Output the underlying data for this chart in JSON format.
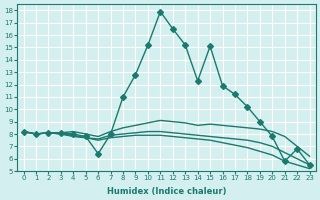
{
  "xlabel": "Humidex (Indice chaleur)",
  "ylabel": "",
  "xlim": [
    -0.5,
    23.5
  ],
  "ylim": [
    5,
    18.5
  ],
  "yticks": [
    5,
    6,
    7,
    8,
    9,
    10,
    11,
    12,
    13,
    14,
    15,
    16,
    17,
    18
  ],
  "xticks": [
    0,
    1,
    2,
    3,
    4,
    5,
    6,
    7,
    8,
    9,
    10,
    11,
    12,
    13,
    14,
    15,
    16,
    17,
    18,
    19,
    20,
    21,
    22,
    23
  ],
  "bg_color": "#d4efef",
  "grid_color": "#ffffff",
  "line_color": "#1a7a6e",
  "lines": [
    {
      "x": [
        0,
        1,
        2,
        3,
        4,
        5,
        6,
        7,
        8,
        9,
        10,
        11,
        12,
        13,
        14,
        15,
        16,
        17,
        18,
        19,
        20,
        21,
        22,
        23
      ],
      "y": [
        8.2,
        8.0,
        8.1,
        8.1,
        8.0,
        7.8,
        6.4,
        8.0,
        11.0,
        12.8,
        15.2,
        17.9,
        16.5,
        15.2,
        12.3,
        15.1,
        11.9,
        11.2,
        10.2,
        9.0,
        7.8,
        5.8,
        6.8,
        5.5
      ],
      "marker": "D",
      "markersize": 3,
      "has_marker": true
    },
    {
      "x": [
        0,
        1,
        2,
        3,
        4,
        5,
        6,
        7,
        8,
        9,
        10,
        11,
        12,
        13,
        14,
        15,
        16,
        17,
        18,
        19,
        20,
        21,
        22,
        23
      ],
      "y": [
        8.2,
        8.0,
        8.1,
        8.1,
        8.2,
        8.0,
        7.8,
        8.2,
        8.5,
        8.7,
        8.9,
        9.1,
        9.0,
        8.9,
        8.7,
        8.8,
        8.7,
        8.6,
        8.5,
        8.4,
        8.2,
        7.8,
        7.0,
        6.2
      ],
      "marker": null,
      "markersize": 0,
      "has_marker": false
    },
    {
      "x": [
        0,
        1,
        2,
        3,
        4,
        5,
        6,
        7,
        8,
        9,
        10,
        11,
        12,
        13,
        14,
        15,
        16,
        17,
        18,
        19,
        20,
        21,
        22,
        23
      ],
      "y": [
        8.2,
        8.0,
        8.1,
        8.0,
        7.8,
        7.7,
        7.6,
        7.9,
        8.0,
        8.1,
        8.2,
        8.2,
        8.1,
        8.0,
        7.9,
        7.8,
        7.7,
        7.6,
        7.5,
        7.3,
        7.0,
        6.5,
        6.0,
        5.5
      ],
      "marker": null,
      "markersize": 0,
      "has_marker": false
    },
    {
      "x": [
        0,
        1,
        2,
        3,
        4,
        5,
        6,
        7,
        8,
        9,
        10,
        11,
        12,
        13,
        14,
        15,
        16,
        17,
        18,
        19,
        20,
        21,
        22,
        23
      ],
      "y": [
        8.2,
        8.0,
        8.1,
        8.0,
        7.9,
        7.7,
        7.5,
        7.7,
        7.8,
        7.9,
        7.9,
        7.9,
        7.8,
        7.7,
        7.6,
        7.5,
        7.3,
        7.1,
        6.9,
        6.6,
        6.3,
        5.8,
        5.5,
        5.2
      ],
      "marker": null,
      "markersize": 0,
      "has_marker": false
    }
  ]
}
